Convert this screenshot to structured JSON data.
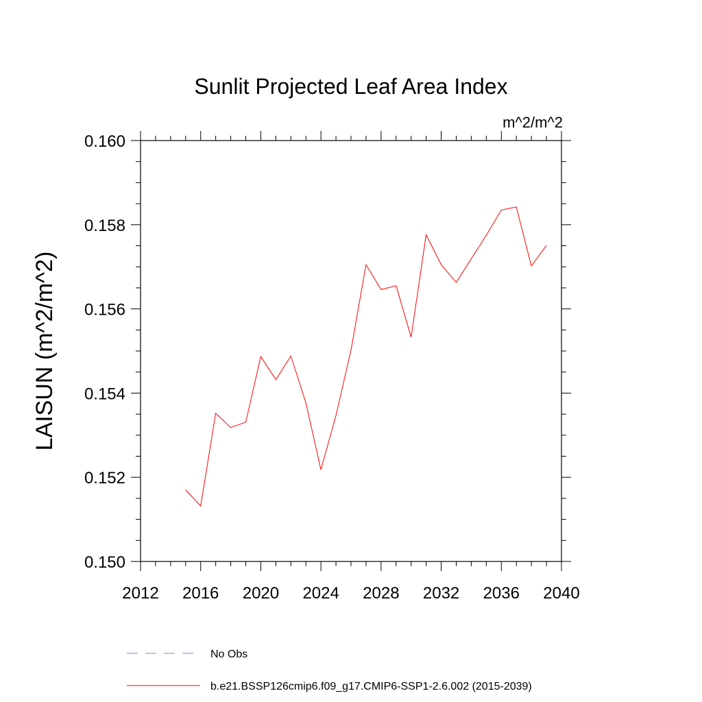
{
  "chart_data": {
    "type": "line",
    "title": "Sunlit Projected Leaf Area Index",
    "units_label": "m^2/m^2",
    "xlabel": "",
    "ylabel": "LAISUN  (m^2/m^2)",
    "xlim": [
      2012,
      2040
    ],
    "ylim": [
      0.15,
      0.16
    ],
    "x_ticks": [
      2012,
      2016,
      2020,
      2024,
      2028,
      2032,
      2036,
      2040
    ],
    "x_tick_labels": [
      "2012",
      "2016",
      "2020",
      "2024",
      "2028",
      "2032",
      "2036",
      "2040"
    ],
    "y_ticks": [
      0.15,
      0.152,
      0.154,
      0.156,
      0.158,
      0.16
    ],
    "y_tick_labels": [
      "0.150",
      "0.152",
      "0.154",
      "0.156",
      "0.158",
      "0.160"
    ],
    "grid": false,
    "legend_position": "bottom",
    "series": [
      {
        "name": "b.e21.BSSP126cmip6.f09_g17.CMIP6-SSP1-2.6.002 (2015-2039)",
        "color": "#ff0000",
        "style": "solid",
        "x": [
          2015,
          2016,
          2017,
          2018,
          2019,
          2020,
          2021,
          2022,
          2023,
          2024,
          2025,
          2026,
          2027,
          2028,
          2029,
          2030,
          2031,
          2032,
          2033,
          2034,
          2035,
          2036,
          2037,
          2038,
          2039
        ],
        "values": [
          0.1517,
          0.15132,
          0.15352,
          0.15318,
          0.15331,
          0.15487,
          0.15432,
          0.15488,
          0.15377,
          0.15218,
          0.15347,
          0.15502,
          0.15705,
          0.15646,
          0.15655,
          0.15533,
          0.15776,
          0.15705,
          0.15663,
          0.15719,
          0.15775,
          0.15835,
          0.15842,
          0.15702,
          0.15751
        ]
      }
    ],
    "legend": [
      {
        "label": "No Obs",
        "color": "#8080c0",
        "style": "dashed"
      },
      {
        "label": "b.e21.BSSP126cmip6.f09_g17.CMIP6-SSP1-2.6.002 (2015-2039)",
        "color": "#ff0000",
        "style": "solid"
      }
    ]
  }
}
